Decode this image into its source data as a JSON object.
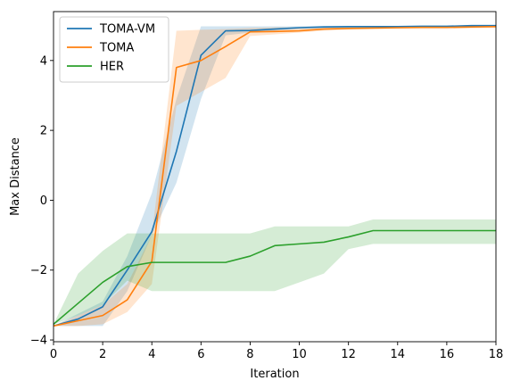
{
  "chart_data": {
    "type": "line",
    "xlabel": "Iteration",
    "ylabel": "Max Distance",
    "xlim": [
      0,
      18
    ],
    "ylim": [
      -4.05,
      5.4
    ],
    "xticks": [
      0,
      2,
      4,
      6,
      8,
      10,
      12,
      14,
      16,
      18
    ],
    "yticks": [
      -4,
      -2,
      0,
      2,
      4
    ],
    "grid": false,
    "legend_position": "top-left",
    "series": [
      {
        "name": "TOMA-VM",
        "color": "#1f77b4",
        "x": [
          0,
          1,
          2,
          3,
          4,
          5,
          6,
          7,
          8,
          9,
          10,
          11,
          12,
          13,
          14,
          15,
          16,
          17,
          18
        ],
        "y": [
          -3.6,
          -3.4,
          -3.05,
          -2.0,
          -0.9,
          1.4,
          4.15,
          4.85,
          4.86,
          4.9,
          4.94,
          4.96,
          4.97,
          4.97,
          4.97,
          4.98,
          4.98,
          5.0,
          5.0
        ],
        "lower": [
          -3.6,
          -3.6,
          -3.6,
          -2.6,
          -1.0,
          0.5,
          2.9,
          4.72,
          4.8,
          4.85,
          4.9,
          4.92,
          4.93,
          4.93,
          4.93,
          4.93,
          4.93,
          4.96,
          4.96
        ],
        "upper": [
          -3.6,
          -3.25,
          -2.9,
          -1.6,
          0.2,
          2.9,
          4.98,
          4.98,
          4.98,
          4.98,
          4.98,
          4.99,
          4.99,
          4.99,
          4.99,
          4.99,
          4.99,
          5.0,
          5.0
        ]
      },
      {
        "name": "TOMA",
        "color": "#ff7f0e",
        "x": [
          0,
          1,
          2,
          3,
          4,
          5,
          6,
          7,
          8,
          9,
          10,
          11,
          12,
          13,
          14,
          15,
          16,
          17,
          18
        ],
        "y": [
          -3.6,
          -3.45,
          -3.3,
          -2.85,
          -1.75,
          3.8,
          4.0,
          4.4,
          4.82,
          4.83,
          4.85,
          4.9,
          4.92,
          4.93,
          4.94,
          4.95,
          4.95,
          4.96,
          4.97
        ],
        "lower": [
          -3.6,
          -3.6,
          -3.55,
          -3.2,
          -2.4,
          2.7,
          3.1,
          3.5,
          4.7,
          4.75,
          4.8,
          4.85,
          4.88,
          4.9,
          4.9,
          4.9,
          4.9,
          4.92,
          4.93
        ],
        "upper": [
          -3.6,
          -3.3,
          -3.0,
          -2.4,
          -1.0,
          4.85,
          4.88,
          4.9,
          4.93,
          4.95,
          4.95,
          4.96,
          4.97,
          4.98,
          4.98,
          4.98,
          4.98,
          4.99,
          4.99
        ]
      },
      {
        "name": "HER",
        "color": "#2ca02c",
        "x": [
          0,
          1,
          2,
          3,
          4,
          5,
          6,
          7,
          8,
          9,
          10,
          11,
          12,
          13,
          14,
          15,
          16,
          17,
          18
        ],
        "y": [
          -3.55,
          -2.95,
          -2.35,
          -1.9,
          -1.78,
          -1.78,
          -1.78,
          -1.78,
          -1.6,
          -1.3,
          -1.25,
          -1.2,
          -1.05,
          -0.87,
          -0.87,
          -0.87,
          -0.87,
          -0.87,
          -0.87
        ],
        "lower": [
          -3.55,
          -3.3,
          -3.0,
          -2.3,
          -2.6,
          -2.6,
          -2.6,
          -2.6,
          -2.6,
          -2.6,
          -2.35,
          -2.1,
          -1.4,
          -1.25,
          -1.25,
          -1.25,
          -1.25,
          -1.25,
          -1.25
        ],
        "upper": [
          -3.55,
          -2.1,
          -1.45,
          -0.95,
          -0.95,
          -0.95,
          -0.95,
          -0.95,
          -0.95,
          -0.75,
          -0.75,
          -0.75,
          -0.75,
          -0.55,
          -0.55,
          -0.55,
          -0.55,
          -0.55,
          -0.55
        ]
      }
    ]
  }
}
